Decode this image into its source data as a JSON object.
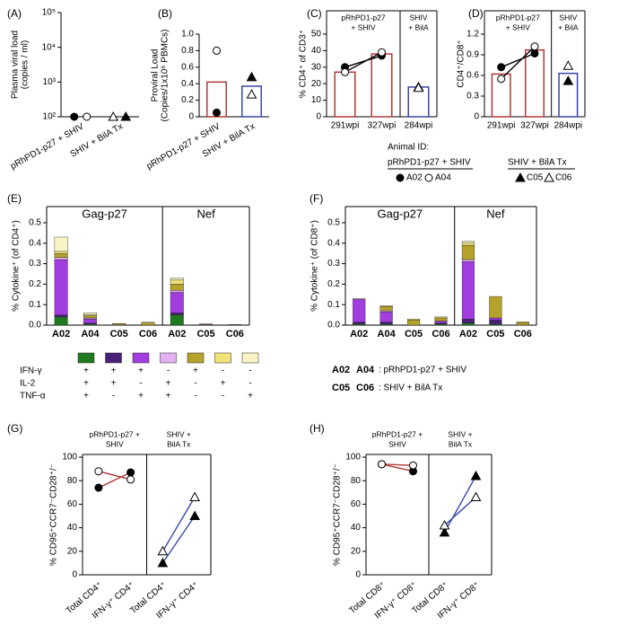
{
  "chart_data": [
    {
      "panel": "(A)",
      "type": "scatter",
      "log_scale": true,
      "ylabel": [
        "Plasma viral load",
        "(copies / ml)"
      ],
      "categories": [
        "pRhPD1-p27 + SHIV",
        "SHIV + BilA Tx"
      ],
      "ylim": [
        100,
        100000
      ],
      "yticks": [
        {
          "value": 100,
          "label": "10²"
        },
        {
          "value": 1000,
          "label": "10³"
        },
        {
          "value": 10000,
          "label": "10⁴"
        },
        {
          "value": 100000,
          "label": "10⁵"
        }
      ],
      "series": [
        {
          "name": "A02",
          "marker": "circle",
          "filled": true,
          "color": "#000",
          "values": [
            100,
            null
          ]
        },
        {
          "name": "A04",
          "marker": "circle",
          "filled": false,
          "color": "#000",
          "values": [
            100,
            null
          ]
        },
        {
          "name": "C05",
          "marker": "triangle",
          "filled": true,
          "color": "#000",
          "values": [
            null,
            100
          ]
        },
        {
          "name": "C06",
          "marker": "triangle",
          "filled": false,
          "color": "#000",
          "values": [
            null,
            100
          ]
        }
      ]
    },
    {
      "panel": "(B)",
      "type": "scatter",
      "ylabel": [
        "Proviral Load",
        "(Copies/1x10⁶ PBMCs)"
      ],
      "categories": [
        "pRhPD1-p27 + SHIV",
        "SHIV + BilA Tx"
      ],
      "ylim": [
        0,
        1.0
      ],
      "yticks": [
        0,
        0.2,
        0.4,
        0.6,
        0.8,
        {
          "value": 1.0,
          "label": "1.0"
        }
      ],
      "bars": {
        "values": [
          0.42,
          0.37
        ],
        "colors": [
          "#b03a3a",
          "#3a46a8"
        ]
      },
      "series": [
        {
          "name": "A02",
          "marker": "circle",
          "filled": true,
          "color": "#000",
          "values": [
            0.05,
            null
          ]
        },
        {
          "name": "A04",
          "marker": "circle",
          "filled": false,
          "color": "#000",
          "values": [
            0.8,
            null
          ]
        },
        {
          "name": "C05",
          "marker": "triangle",
          "filled": true,
          "color": "#000",
          "values": [
            null,
            0.48
          ]
        },
        {
          "name": "C06",
          "marker": "triangle",
          "filled": false,
          "color": "#000",
          "values": [
            null,
            0.27
          ]
        }
      ]
    },
    {
      "panel": "(C)",
      "type": "scatter",
      "ylabel": [
        "% CD4⁺ of CD3⁺"
      ],
      "groups": [
        [
          "pRhPD1-p27",
          "+ SHIV"
        ],
        [
          "SHIV",
          "+ BilA"
        ]
      ],
      "categories": [
        "291wpi",
        "327wpi",
        "284wpi"
      ],
      "ylim": [
        0,
        50
      ],
      "yticks": [
        0,
        10,
        20,
        30,
        40,
        50
      ],
      "bars": {
        "values": [
          27,
          38,
          18
        ],
        "colors": [
          "#b03a3a",
          "#b03a3a",
          "#3a46a8"
        ]
      },
      "series": [
        {
          "name": "A02",
          "marker": "circle",
          "filled": true,
          "color": "#000",
          "line_color": "#000",
          "values": [
            30,
            37,
            null
          ]
        },
        {
          "name": "A04",
          "marker": "circle",
          "filled": false,
          "color": "#000",
          "line_color": "#000",
          "values": [
            27,
            39,
            null
          ]
        },
        {
          "name": "C05",
          "marker": "triangle",
          "filled": true,
          "color": "#000",
          "values": [
            null,
            null,
            18
          ]
        },
        {
          "name": "C06",
          "marker": "triangle",
          "filled": false,
          "color": "#000",
          "values": [
            null,
            null,
            17.5
          ]
        }
      ]
    },
    {
      "panel": "(D)",
      "type": "scatter",
      "ylabel": [
        "CD4⁺/CD8⁺"
      ],
      "groups": [
        [
          "pRhPD1-p27",
          "+ SHIV"
        ],
        [
          "SHIV",
          "+ BilA"
        ]
      ],
      "categories": [
        "291wpi",
        "327wpi",
        "284wpi"
      ],
      "ylim": [
        0,
        1.2
      ],
      "yticks": [
        0,
        0.3,
        0.6,
        0.9,
        1.2
      ],
      "bars": {
        "values": [
          0.62,
          0.97,
          0.63
        ],
        "colors": [
          "#b03a3a",
          "#b03a3a",
          "#3a46a8"
        ]
      },
      "series": [
        {
          "name": "A02",
          "marker": "circle",
          "filled": true,
          "color": "#000",
          "line_color": "#000",
          "values": [
            0.72,
            0.92,
            null
          ]
        },
        {
          "name": "A04",
          "marker": "circle",
          "filled": false,
          "color": "#000",
          "line_color": "#000",
          "values": [
            0.55,
            1.02,
            null
          ]
        },
        {
          "name": "C05",
          "marker": "triangle",
          "filled": true,
          "color": "#000",
          "values": [
            null,
            null,
            0.52
          ]
        },
        {
          "name": "C06",
          "marker": "triangle",
          "filled": false,
          "color": "#000",
          "values": [
            null,
            null,
            0.74
          ]
        }
      ]
    },
    {
      "panel": "(E)",
      "type": "stacked_bar",
      "ylabel": [
        "% Cytokine⁺ (of CD4⁺)"
      ],
      "groups": [
        [
          "Gag-p27"
        ],
        [
          "Nef"
        ]
      ],
      "categories": [
        "A02",
        "A04",
        "C05",
        "C06",
        "A02",
        "C05",
        "C06"
      ],
      "category_colors": [
        "#b03a3a",
        "#b03a3a",
        "#3a46a8",
        "#3a46a8",
        "#b03a3a",
        "#3a46a8",
        "#3a46a8"
      ],
      "ylim": [
        0,
        0.5
      ],
      "yticks": [
        {
          "value": 0,
          "label": "0.0"
        },
        0.1,
        0.2,
        0.3,
        0.4,
        0.5
      ],
      "series": [
        {
          "color": "#1f7a1f",
          "values": [
            0.04,
            0.005,
            0,
            0,
            0.05,
            0,
            0
          ]
        },
        {
          "color": "#4a1f7a",
          "values": [
            0.01,
            0.005,
            0,
            0,
            0.01,
            0,
            0
          ]
        },
        {
          "color": "#a23de0",
          "values": [
            0.27,
            0.02,
            0,
            0,
            0.1,
            0.003,
            0
          ]
        },
        {
          "color": "#e3b0f2",
          "values": [
            0.01,
            0.005,
            0,
            0,
            0.01,
            0,
            0
          ]
        },
        {
          "color": "#b5a22a",
          "values": [
            0.02,
            0.01,
            0.005,
            0.01,
            0.03,
            0.003,
            0.002
          ]
        },
        {
          "color": "#f2e27a",
          "values": [
            0.01,
            0.005,
            0.003,
            0.005,
            0.02,
            0,
            0.001
          ]
        },
        {
          "color": "#f9f5c2",
          "values": [
            0.07,
            0.01,
            0,
            0,
            0.01,
            0,
            0
          ]
        }
      ],
      "legend": {
        "rows": [
          {
            "label": "IFN-γ",
            "signs": [
              "+",
              "+",
              "+",
              "-",
              "+",
              "-",
              "-"
            ]
          },
          {
            "label": "IL-2",
            "signs": [
              "+",
              "+",
              "-",
              "+",
              "-",
              "+",
              "-"
            ]
          },
          {
            "label": "TNF-α",
            "signs": [
              "+",
              "-",
              "+",
              "+",
              "-",
              "-",
              "+"
            ]
          }
        ]
      }
    },
    {
      "panel": "(F)",
      "type": "stacked_bar",
      "ylabel": [
        "% Cytokine⁺ (of CD8⁺)"
      ],
      "groups": [
        [
          "Gag-p27"
        ],
        [
          "Nef"
        ]
      ],
      "categories": [
        "A02",
        "A04",
        "C05",
        "C06",
        "A02",
        "C05",
        "C06"
      ],
      "category_colors": [
        "#b03a3a",
        "#b03a3a",
        "#3a46a8",
        "#3a46a8",
        "#b03a3a",
        "#3a46a8",
        "#3a46a8"
      ],
      "ylim": [
        0,
        0.5
      ],
      "yticks": [
        {
          "value": 0,
          "label": "0.0"
        },
        0.1,
        0.2,
        0.3,
        0.4,
        0.5
      ],
      "series": [
        {
          "color": "#1f7a1f",
          "values": [
            0.005,
            0.005,
            0,
            0.005,
            0.01,
            0.005,
            0
          ]
        },
        {
          "color": "#4a1f7a",
          "values": [
            0.01,
            0.01,
            0,
            0.005,
            0.02,
            0.02,
            0
          ]
        },
        {
          "color": "#a23de0",
          "values": [
            0.11,
            0.05,
            0,
            0.01,
            0.28,
            0.01,
            0
          ]
        },
        {
          "color": "#e3b0f2",
          "values": [
            0.005,
            0.005,
            0,
            0,
            0.01,
            0,
            0
          ]
        },
        {
          "color": "#b5a22a",
          "values": [
            0,
            0.02,
            0.025,
            0.015,
            0.07,
            0.105,
            0.012
          ]
        },
        {
          "color": "#f2e27a",
          "values": [
            0,
            0.005,
            0.005,
            0.005,
            0.01,
            0,
            0.005
          ]
        },
        {
          "color": "#f9f5c2",
          "values": [
            0,
            0,
            0,
            0,
            0.01,
            0,
            0
          ]
        }
      ],
      "group_legend": [
        {
          "ids": [
            "A02",
            "A04"
          ],
          "color": "#b03a3a",
          "label": ": pRhPD1-p27 + SHIV"
        },
        {
          "ids": [
            "C05",
            "C06"
          ],
          "color": "#3a46a8",
          "label": ": SHIV  + BilA Tx"
        }
      ]
    },
    {
      "panel": "(G)",
      "type": "scatter",
      "ylabel": [
        "% CD95⁺CCR7⁻CD28⁺/⁻"
      ],
      "groups": [
        [
          "pRhPD1-p27 +",
          "SHIV"
        ],
        [
          "SHIV +",
          "BilA Tx"
        ]
      ],
      "categories": [
        "Total CD4⁺",
        "IFN-γ⁺ CD4⁺",
        "Total CD4⁺",
        "IFN-γ⁺ CD4⁺"
      ],
      "ylim": [
        0,
        100
      ],
      "yticks": [
        0,
        20,
        40,
        60,
        80,
        100
      ],
      "series": [
        {
          "name": "A02",
          "marker": "circle",
          "filled": true,
          "color": "#000",
          "line_color": "#b03a3a",
          "values": [
            74,
            87,
            null,
            null
          ]
        },
        {
          "name": "A04",
          "marker": "circle",
          "filled": false,
          "color": "#000",
          "line_color": "#b03a3a",
          "values": [
            88,
            81,
            null,
            null
          ]
        },
        {
          "name": "C05",
          "marker": "triangle",
          "filled": true,
          "color": "#000",
          "line_color": "#3a46a8",
          "values": [
            null,
            null,
            10,
            50
          ]
        },
        {
          "name": "C06",
          "marker": "triangle",
          "filled": false,
          "color": "#000",
          "line_color": "#3a46a8",
          "values": [
            null,
            null,
            20,
            66
          ]
        }
      ]
    },
    {
      "panel": "(H)",
      "type": "scatter",
      "ylabel": [
        "% CD95⁺CCR7⁻CD28⁺/⁻"
      ],
      "groups": [
        [
          "pRhPD1-p27 +",
          "SHIV"
        ],
        [
          "SHIV +",
          "BilA Tx"
        ]
      ],
      "categories": [
        "Total CD8⁺",
        "IFN-γ⁺ CD8⁺",
        "Total CD8⁺",
        "IFN-γ⁺ CD8⁺"
      ],
      "ylim": [
        0,
        100
      ],
      "yticks": [
        0,
        20,
        40,
        60,
        80,
        100
      ],
      "series": [
        {
          "name": "A02",
          "marker": "circle",
          "filled": true,
          "color": "#000",
          "line_color": "#b03a3a",
          "values": [
            94,
            88,
            null,
            null
          ]
        },
        {
          "name": "A04",
          "marker": "circle",
          "filled": false,
          "color": "#000",
          "line_color": "#b03a3a",
          "values": [
            94,
            93,
            null,
            null
          ]
        },
        {
          "name": "C05",
          "marker": "triangle",
          "filled": true,
          "color": "#000",
          "line_color": "#3a46a8",
          "values": [
            null,
            null,
            36,
            84
          ]
        },
        {
          "name": "C06",
          "marker": "triangle",
          "filled": false,
          "color": "#000",
          "line_color": "#3a46a8",
          "values": [
            null,
            null,
            42,
            66
          ]
        }
      ]
    }
  ],
  "animal_legend": {
    "title": "Animal ID:",
    "groups": [
      {
        "label": "pRhPD1-p27 + SHIV",
        "items": [
          {
            "name": "A02",
            "color": "#b03a3a",
            "marker": "circle",
            "filled": true
          },
          {
            "name": "A04",
            "color": "#b03a3a",
            "marker": "circle",
            "filled": false
          }
        ]
      },
      {
        "label": "SHIV  + BilA Tx",
        "items": [
          {
            "name": "C05",
            "color": "#3a46a8",
            "marker": "triangle",
            "filled": true
          },
          {
            "name": "C06",
            "color": "#3a46a8",
            "marker": "triangle",
            "filled": false
          }
        ]
      }
    ]
  }
}
